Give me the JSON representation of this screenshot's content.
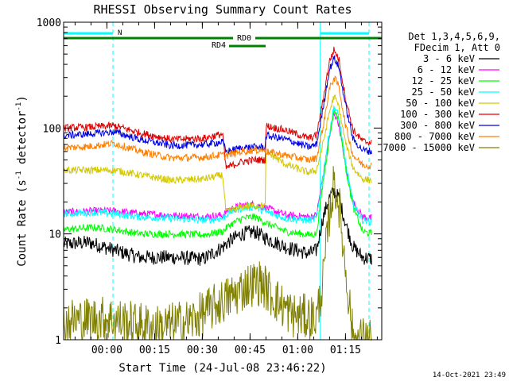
{
  "chart_data": {
    "type": "line",
    "title": "RHESSI Observing Summary Count Rates",
    "xlabel": "Start Time (24-Jul-08 23:46:22)",
    "ylabel_main": "Count Rate (s",
    "ylabel_sup1": "-1",
    "ylabel_mid": " detector",
    "ylabel_sup2": "-1",
    "ylabel_end": ")",
    "timestamp": "14-Oct-2021 23:49",
    "x_axis": {
      "unit": "minutes since start",
      "range": [
        0,
        100
      ],
      "ticks": [
        {
          "value": 13.6,
          "label": "00:00"
        },
        {
          "value": 28.6,
          "label": "00:15"
        },
        {
          "value": 43.6,
          "label": "00:30"
        },
        {
          "value": 58.6,
          "label": "00:45"
        },
        {
          "value": 73.6,
          "label": "01:00"
        },
        {
          "value": 88.6,
          "label": "01:15"
        }
      ]
    },
    "y_axis": {
      "scale": "log",
      "range": [
        1,
        1000
      ],
      "ticks": [
        {
          "value": 1,
          "label": "1"
        },
        {
          "value": 10,
          "label": "10"
        },
        {
          "value": 100,
          "label": "100"
        },
        {
          "value": 1000,
          "label": "1000"
        }
      ]
    },
    "legend": {
      "placement": "right",
      "header1": "Det 1,3,4,5,6,9,",
      "header2": "FDecim 1, Att 0"
    },
    "flags": {
      "N": {
        "label": "N",
        "color": "#00ffff",
        "intervals": [
          [
            0,
            15.5
          ],
          [
            80.7,
            96
          ]
        ]
      },
      "RD0": {
        "label": "RD0",
        "color": "#008000",
        "intervals": [
          [
            0,
            63.5
          ],
          [
            63.5,
            100
          ]
        ]
      },
      "RD4": {
        "label": "RD4",
        "color": "#008000",
        "intervals": [
          [
            52,
            63.5
          ]
        ]
      }
    },
    "vertical_markers": {
      "solid": [
        80.7
      ],
      "dashed": [
        15.5,
        96
      ]
    },
    "series": [
      {
        "name": "3 - 6 keV",
        "color": "#000000",
        "points": [
          [
            0,
            8
          ],
          [
            8,
            8.3
          ],
          [
            16,
            7
          ],
          [
            24,
            6
          ],
          [
            34,
            6
          ],
          [
            44,
            5.8
          ],
          [
            50,
            7.5
          ],
          [
            52,
            8.5
          ],
          [
            56,
            10
          ],
          [
            60,
            10.5
          ],
          [
            64,
            9
          ],
          [
            70,
            7.5
          ],
          [
            77,
            6.5
          ],
          [
            79.5,
            7
          ],
          [
            81.5,
            14
          ],
          [
            83.5,
            22
          ],
          [
            85,
            25
          ],
          [
            86.5,
            22
          ],
          [
            88.5,
            13
          ],
          [
            91,
            7.5
          ],
          [
            94,
            6
          ],
          [
            97,
            5.8
          ]
        ]
      },
      {
        "name": "6 - 12 keV",
        "color": "#ff00ff",
        "points": [
          [
            0,
            16
          ],
          [
            10,
            16.5
          ],
          [
            16,
            16.5
          ],
          [
            24,
            15.5
          ],
          [
            34,
            15
          ],
          [
            44,
            14.5
          ],
          [
            50,
            15
          ],
          [
            52,
            17
          ],
          [
            56,
            18.5
          ],
          [
            60,
            19
          ],
          [
            64,
            17.5
          ],
          [
            70,
            15
          ],
          [
            77,
            14.5
          ],
          [
            79.5,
            15
          ],
          [
            81.5,
            35
          ],
          [
            83.5,
            80
          ],
          [
            85,
            140
          ],
          [
            86.5,
            110
          ],
          [
            88.5,
            45
          ],
          [
            91,
            20
          ],
          [
            94,
            14.5
          ],
          [
            97,
            14
          ]
        ]
      },
      {
        "name": "12 - 25 keV",
        "color": "#00ff00",
        "points": [
          [
            0,
            11
          ],
          [
            10,
            11.5
          ],
          [
            16,
            11
          ],
          [
            24,
            10
          ],
          [
            34,
            10
          ],
          [
            44,
            9.8
          ],
          [
            50,
            10.5
          ],
          [
            52,
            12
          ],
          [
            56,
            14
          ],
          [
            60,
            14.5
          ],
          [
            64,
            12.5
          ],
          [
            70,
            10.5
          ],
          [
            77,
            9.8
          ],
          [
            79.5,
            10
          ],
          [
            81.5,
            30
          ],
          [
            83.5,
            80
          ],
          [
            85,
            150
          ],
          [
            86.5,
            120
          ],
          [
            88.5,
            45
          ],
          [
            91,
            18
          ],
          [
            94,
            10.5
          ],
          [
            97,
            10
          ]
        ]
      },
      {
        "name": "25 - 50 keV",
        "color": "#00ffff",
        "points": [
          [
            0,
            15.5
          ],
          [
            10,
            16
          ],
          [
            16,
            15.5
          ],
          [
            24,
            14.5
          ],
          [
            34,
            14
          ],
          [
            44,
            13.5
          ],
          [
            50,
            14
          ],
          [
            52,
            16
          ],
          [
            56,
            17.5
          ],
          [
            60,
            18
          ],
          [
            64,
            16
          ],
          [
            70,
            14
          ],
          [
            77,
            13.5
          ],
          [
            79.5,
            14
          ],
          [
            81.5,
            35
          ],
          [
            83.5,
            90
          ],
          [
            85,
            160
          ],
          [
            86.5,
            130
          ],
          [
            88.5,
            50
          ],
          [
            91,
            19
          ],
          [
            94,
            13.5
          ],
          [
            97,
            13
          ]
        ]
      },
      {
        "name": "50 - 100 keV",
        "color": "#d4c800",
        "points": [
          [
            0,
            40
          ],
          [
            8,
            40
          ],
          [
            16,
            40
          ],
          [
            24,
            36
          ],
          [
            34,
            32
          ],
          [
            44,
            33
          ],
          [
            50,
            36
          ],
          [
            51,
            16
          ],
          [
            56,
            18
          ],
          [
            60,
            18.5
          ],
          [
            63.4,
            18.5
          ],
          [
            63.6,
            60
          ],
          [
            70,
            45
          ],
          [
            77,
            38
          ],
          [
            79.5,
            40
          ],
          [
            81.5,
            70
          ],
          [
            83.5,
            140
          ],
          [
            85,
            200
          ],
          [
            86.5,
            160
          ],
          [
            88.5,
            75
          ],
          [
            91,
            42
          ],
          [
            94,
            33
          ],
          [
            97,
            32
          ]
        ]
      },
      {
        "name": "100 - 300 keV",
        "color": "#e00000",
        "points": [
          [
            0,
            100
          ],
          [
            8,
            102
          ],
          [
            16,
            105
          ],
          [
            24,
            90
          ],
          [
            34,
            78
          ],
          [
            44,
            80
          ],
          [
            50,
            88
          ],
          [
            51,
            42
          ],
          [
            56,
            48
          ],
          [
            60,
            50
          ],
          [
            63.4,
            50
          ],
          [
            63.6,
            105
          ],
          [
            70,
            95
          ],
          [
            77,
            80
          ],
          [
            79.5,
            85
          ],
          [
            81.5,
            180
          ],
          [
            83.5,
            420
          ],
          [
            85,
            550
          ],
          [
            86.5,
            450
          ],
          [
            88.5,
            200
          ],
          [
            91,
            95
          ],
          [
            94,
            75
          ],
          [
            97,
            73
          ]
        ]
      },
      {
        "name": "300 - 800 keV",
        "color": "#0000e0",
        "points": [
          [
            0,
            85
          ],
          [
            8,
            88
          ],
          [
            16,
            92
          ],
          [
            24,
            78
          ],
          [
            34,
            68
          ],
          [
            44,
            70
          ],
          [
            50,
            74
          ],
          [
            51,
            60
          ],
          [
            56,
            65
          ],
          [
            60,
            66
          ],
          [
            63.4,
            66
          ],
          [
            63.6,
            85
          ],
          [
            70,
            78
          ],
          [
            77,
            66
          ],
          [
            79.5,
            70
          ],
          [
            81.5,
            150
          ],
          [
            83.5,
            350
          ],
          [
            85,
            460
          ],
          [
            86.5,
            380
          ],
          [
            88.5,
            170
          ],
          [
            91,
            78
          ],
          [
            94,
            62
          ],
          [
            97,
            60
          ]
        ]
      },
      {
        "name": "800 - 7000 keV",
        "color": "#ff7f00",
        "points": [
          [
            0,
            65
          ],
          [
            8,
            67
          ],
          [
            16,
            72
          ],
          [
            24,
            60
          ],
          [
            34,
            52
          ],
          [
            44,
            53
          ],
          [
            50,
            56
          ],
          [
            51,
            55
          ],
          [
            56,
            60
          ],
          [
            60,
            62
          ],
          [
            63.4,
            62
          ],
          [
            63.6,
            60
          ],
          [
            70,
            55
          ],
          [
            77,
            50
          ],
          [
            79.5,
            52
          ],
          [
            81.5,
            100
          ],
          [
            83.5,
            230
          ],
          [
            85,
            300
          ],
          [
            86.5,
            250
          ],
          [
            88.5,
            110
          ],
          [
            91,
            55
          ],
          [
            94,
            45
          ],
          [
            97,
            44
          ]
        ]
      },
      {
        "name": "7000 - 15000 keV",
        "color": "#808000",
        "points": [
          [
            0,
            1.5
          ],
          [
            14,
            1.6
          ],
          [
            22,
            1.4
          ],
          [
            30,
            1.3
          ],
          [
            40,
            1.5
          ],
          [
            50,
            2.3
          ],
          [
            54,
            2.7
          ],
          [
            58,
            3.3
          ],
          [
            62,
            3.5
          ],
          [
            66,
            2.5
          ],
          [
            72,
            1.7
          ],
          [
            79.5,
            1.6
          ],
          [
            81.5,
            3.5
          ],
          [
            83.5,
            15
          ],
          [
            85,
            30
          ],
          [
            86.5,
            20
          ],
          [
            88.5,
            5
          ],
          [
            90,
            2
          ],
          [
            91,
            1
          ],
          [
            97,
            1
          ]
        ]
      }
    ]
  }
}
